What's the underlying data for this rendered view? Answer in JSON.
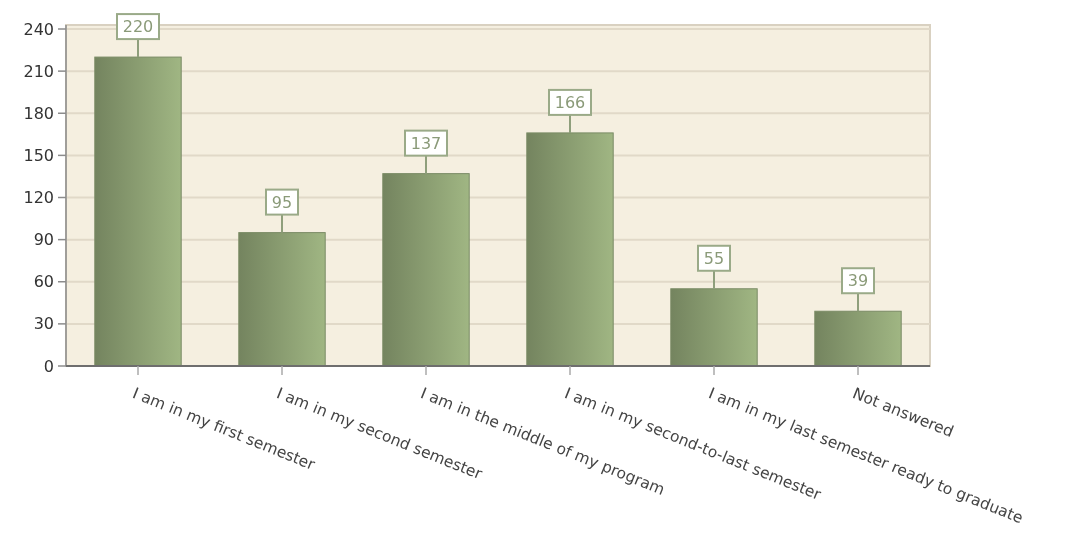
{
  "chart_data": {
    "type": "bar",
    "categories": [
      "I am in my first semester",
      "I am in my second semester",
      "I am in the middle of my program",
      "I am in my second-to-last semester",
      "I am in my last semester ready to graduate",
      "Not answered"
    ],
    "values": [
      220,
      95,
      137,
      166,
      55,
      39
    ],
    "color": "#889b70",
    "ylim": [
      0,
      240
    ],
    "yticks": [
      0,
      30,
      60,
      90,
      120,
      150,
      180,
      210,
      240
    ],
    "grid": "y",
    "data_labels": true
  }
}
